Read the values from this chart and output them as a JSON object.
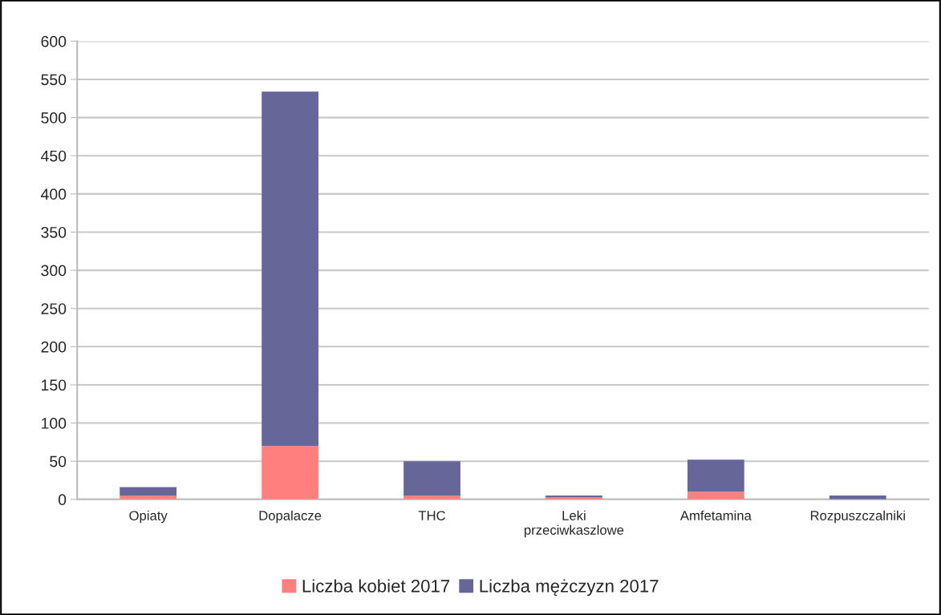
{
  "chart_data": {
    "type": "bar",
    "stacked": true,
    "categories": [
      "Opiaty",
      "Dopalacze",
      "THC",
      "Leki\nprzeciwkaszlowe",
      "Amfetamina",
      "Rozpuszczalniki"
    ],
    "series": [
      {
        "name": "Liczba kobiet 2017",
        "color": "#ff7f7f",
        "values": [
          5,
          70,
          5,
          3,
          10,
          0
        ]
      },
      {
        "name": "Liczba mężczyzn 2017",
        "color": "#666699",
        "values": [
          11,
          464,
          45,
          2,
          42,
          5
        ]
      }
    ],
    "ylim": [
      0,
      600
    ],
    "yticks": [
      0,
      50,
      100,
      150,
      200,
      250,
      300,
      350,
      400,
      450,
      500,
      550,
      600
    ],
    "grid": "y",
    "legend": "bottom"
  }
}
